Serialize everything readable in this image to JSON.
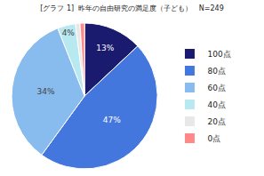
{
  "chart_data": {
    "type": "pie",
    "title": "[グラフ 1]  昨年の自由研究の満足度（子ども）   N=249",
    "categories": [
      "100点",
      "80点",
      "60点",
      "40点",
      "20点",
      "0点"
    ],
    "values": [
      13,
      47,
      34,
      4,
      1,
      1
    ],
    "value_labels": [
      "13%",
      "47%",
      "34%",
      "4%",
      null,
      null
    ],
    "data_labels": true,
    "colors": [
      "#1a1a6e",
      "#4477dd",
      "#88bbee",
      "#b8e8f0",
      "#e8e8e8",
      "#ff8888"
    ],
    "legend": "right"
  }
}
